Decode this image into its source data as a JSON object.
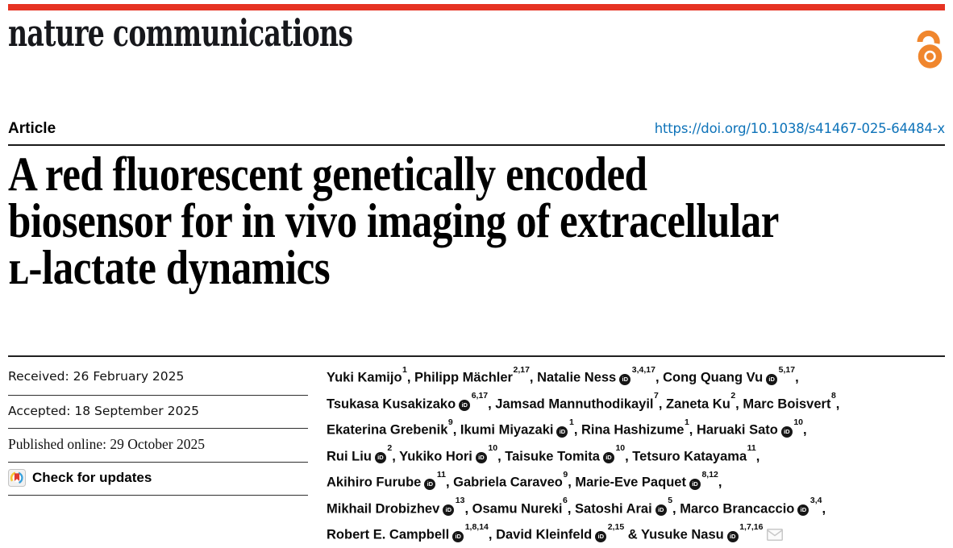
{
  "brand": {
    "journal_logo": "nature communications",
    "topbar_color": "#e63323",
    "open_access_color": "#F0862D"
  },
  "header": {
    "article_label": "Article",
    "doi_text": "https://doi.org/10.1038/s41467-025-64484-x",
    "doi_color": "#0e73b9"
  },
  "title": {
    "lines": [
      "A red fluorescent genetically encoded",
      "biosensor for in vivo imaging of extracellular",
      "ʟ-lactate dynamics"
    ]
  },
  "meta": {
    "received": "Received: 26 February 2025",
    "accepted": "Accepted: 18 September 2025",
    "published_online": "Published online: 29 October 2025",
    "check_updates_label": "Check for updates"
  },
  "authors": {
    "orcid_icon_text": "iD",
    "lines": [
      "Yuki Kamijo^{1}, Philipp Mächler^{2,17}, Natalie Ness@^{3,4,17}, Cong Quang Vu@^{5,17},",
      "Tsukasa Kusakizako@^{6,17}, Jamsad Mannuthodikayil^{7}, Zaneta Ku^{2}, Marc Boisvert^{8},",
      "Ekaterina Grebenik^{9}, Ikumi Miyazaki@^{1}, Rina Hashizume^{1}, Haruaki Sato@^{10},",
      "Rui Liu@^{2}, Yukiko Hori@^{10}, Taisuke Tomita@^{10}, Tetsuro Katayama^{11},",
      "Akihiro Furube@^{11}, Gabriela Caraveo^{9}, Marie-Eve Paquet@^{8,12},",
      "Mikhail Drobizhev@^{13}, Osamu Nureki^{6}, Satoshi Arai@^{5}, Marco Brancaccio@^{3,4},",
      "Robert E. Campbell@^{1,8,14}, David Kleinfeld@^{2,15} & Yusuke Nasu@^{1,7,16}✉"
    ]
  }
}
